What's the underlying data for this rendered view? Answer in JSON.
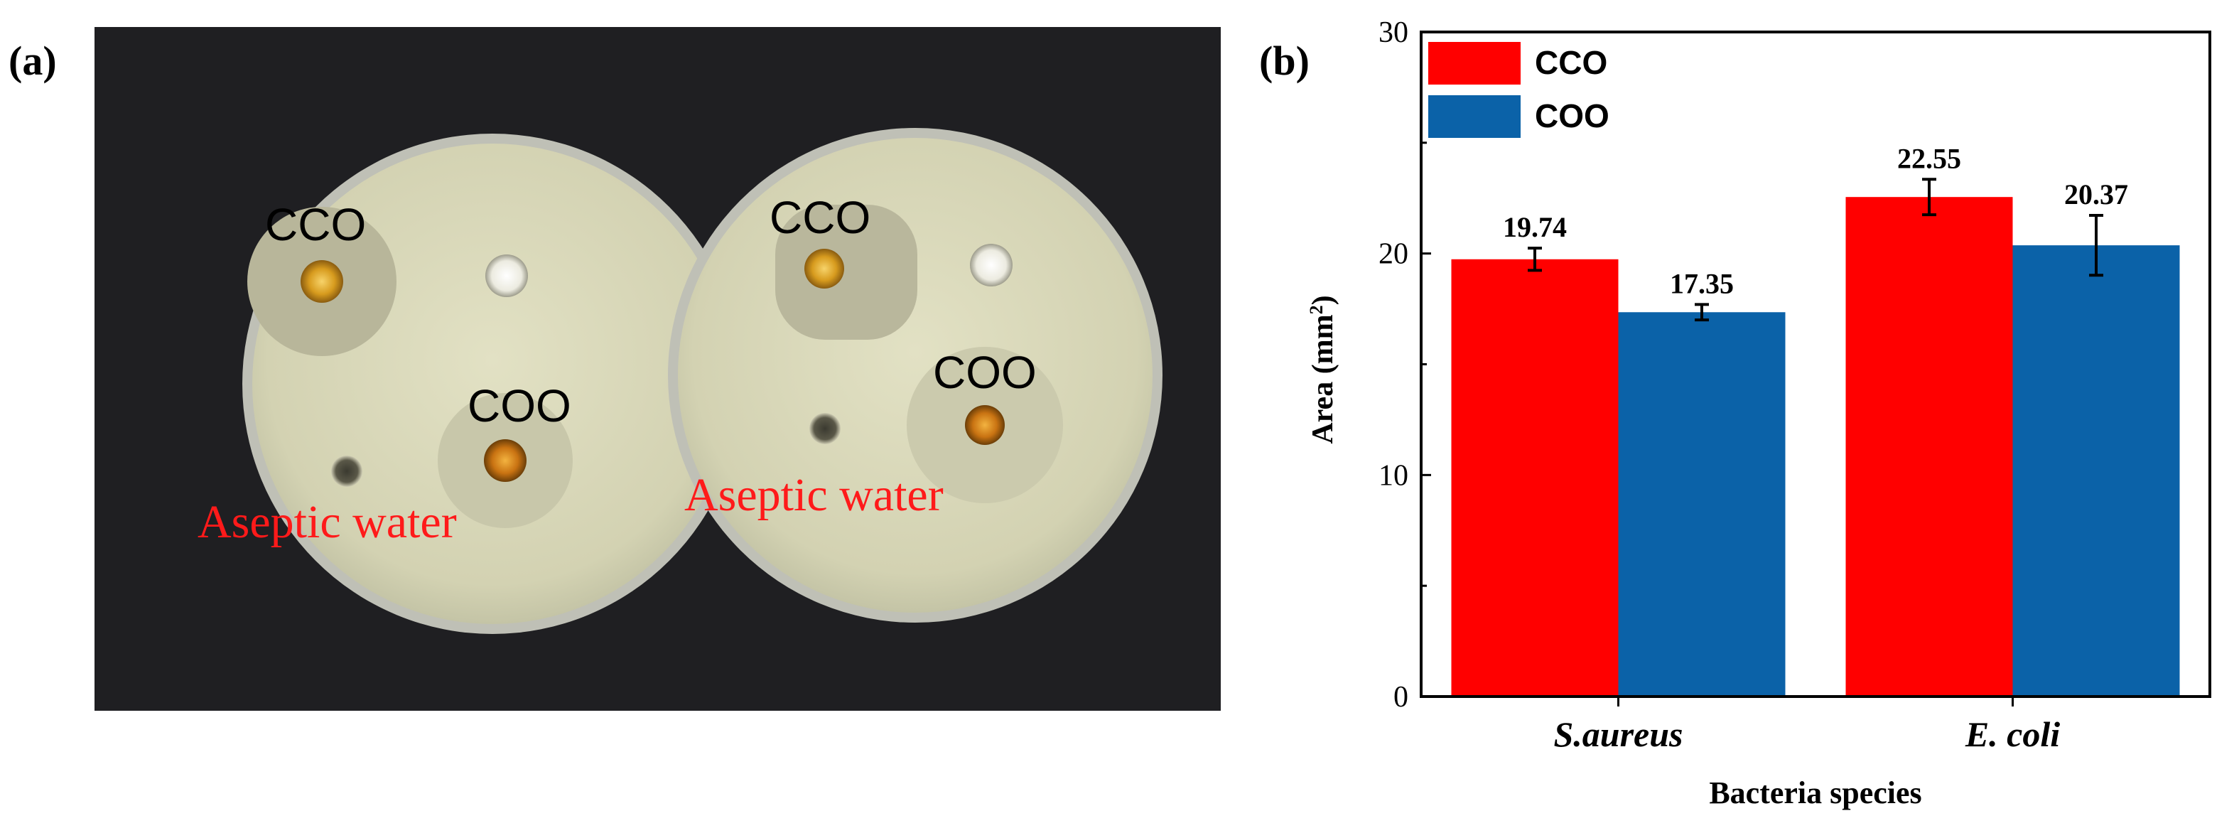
{
  "panels": {
    "a": {
      "label": "(a)"
    },
    "b": {
      "label": "(b)"
    }
  },
  "photo": {
    "plates": [
      {
        "labels": {
          "cco": "CCO",
          "coo": "COO",
          "water": "Aseptic water"
        }
      },
      {
        "labels": {
          "cco": "CCO",
          "coo": "COO",
          "water": "Aseptic water"
        }
      }
    ],
    "colors": {
      "background": "#1f1f22",
      "agar": "#d9d8b8",
      "zone": "#b9b79d",
      "annotation_red": "#ff1a1a",
      "annotation_black": "#000000"
    }
  },
  "chart_data": {
    "type": "bar",
    "categories": [
      "S.aureus",
      "E. coli"
    ],
    "series": [
      {
        "name": "CCO",
        "values": [
          19.74,
          22.55
        ],
        "errors": [
          0.5,
          0.8
        ],
        "color": "#ff0000"
      },
      {
        "name": "COO",
        "values": [
          17.35,
          20.37
        ],
        "errors": [
          0.35,
          1.35
        ],
        "color": "#0b62a8"
      }
    ],
    "data_labels": [
      "19.74",
      "22.55",
      "17.35",
      "20.37"
    ],
    "title": "",
    "xlabel": "Bacteria species",
    "ylabel": "Area (mm",
    "ylabel_sup": "2",
    "ylabel_close": ")",
    "ylim": [
      0,
      30
    ],
    "yticks": [
      0,
      10,
      20,
      30
    ],
    "ytick_labels": [
      "0",
      "10",
      "20",
      "30"
    ],
    "grid": false,
    "legend": "top-left",
    "category_style": "italic-bold"
  }
}
